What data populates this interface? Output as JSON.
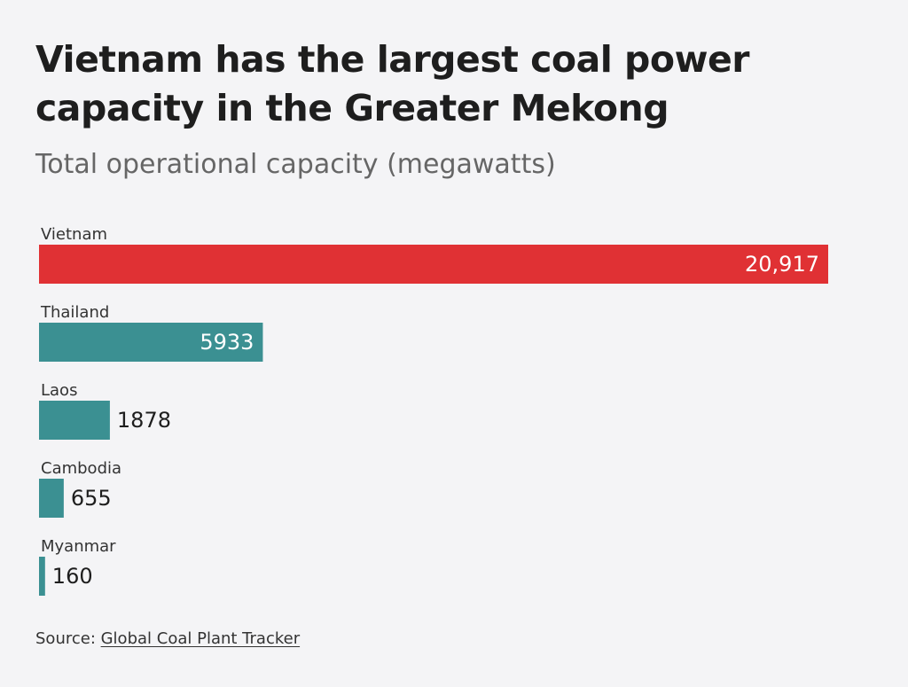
{
  "chart_data": {
    "type": "bar",
    "orientation": "horizontal",
    "title": "Vietnam has the largest coal power capacity in the Greater Mekong",
    "subtitle": "Total operational capacity (megawatts)",
    "categories": [
      "Vietnam",
      "Thailand",
      "Laos",
      "Cambodia",
      "Myanmar"
    ],
    "values": [
      20917,
      5933,
      1878,
      655,
      160
    ],
    "value_labels": [
      "20,917",
      "5933",
      "1878",
      "655",
      "160"
    ],
    "colors": [
      "#e03134",
      "#3b9092",
      "#3b9092",
      "#3b9092",
      "#3b9092"
    ],
    "xlim": [
      0,
      20917
    ],
    "grid": false,
    "legend": "none"
  },
  "source": {
    "prefix": "Source: ",
    "link_text": "Global Coal Plant Tracker"
  }
}
